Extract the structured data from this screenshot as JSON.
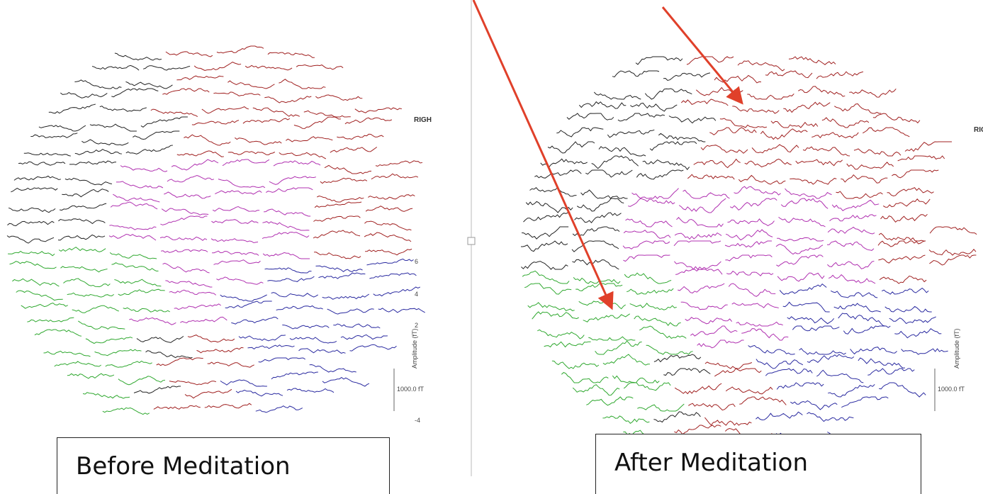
{
  "panels": [
    {
      "caption": "Before Meditation",
      "side_label": "RIGH",
      "axis_label": "Amplitude (fT)",
      "scale_label": "1000.0 fT",
      "ticks": [
        "6",
        "4",
        "2",
        "-4"
      ]
    },
    {
      "caption": "After Meditation",
      "side_label": "RIG",
      "axis_label": "Amplitude (fT)",
      "scale_label": "1000.0 fT"
    }
  ]
}
